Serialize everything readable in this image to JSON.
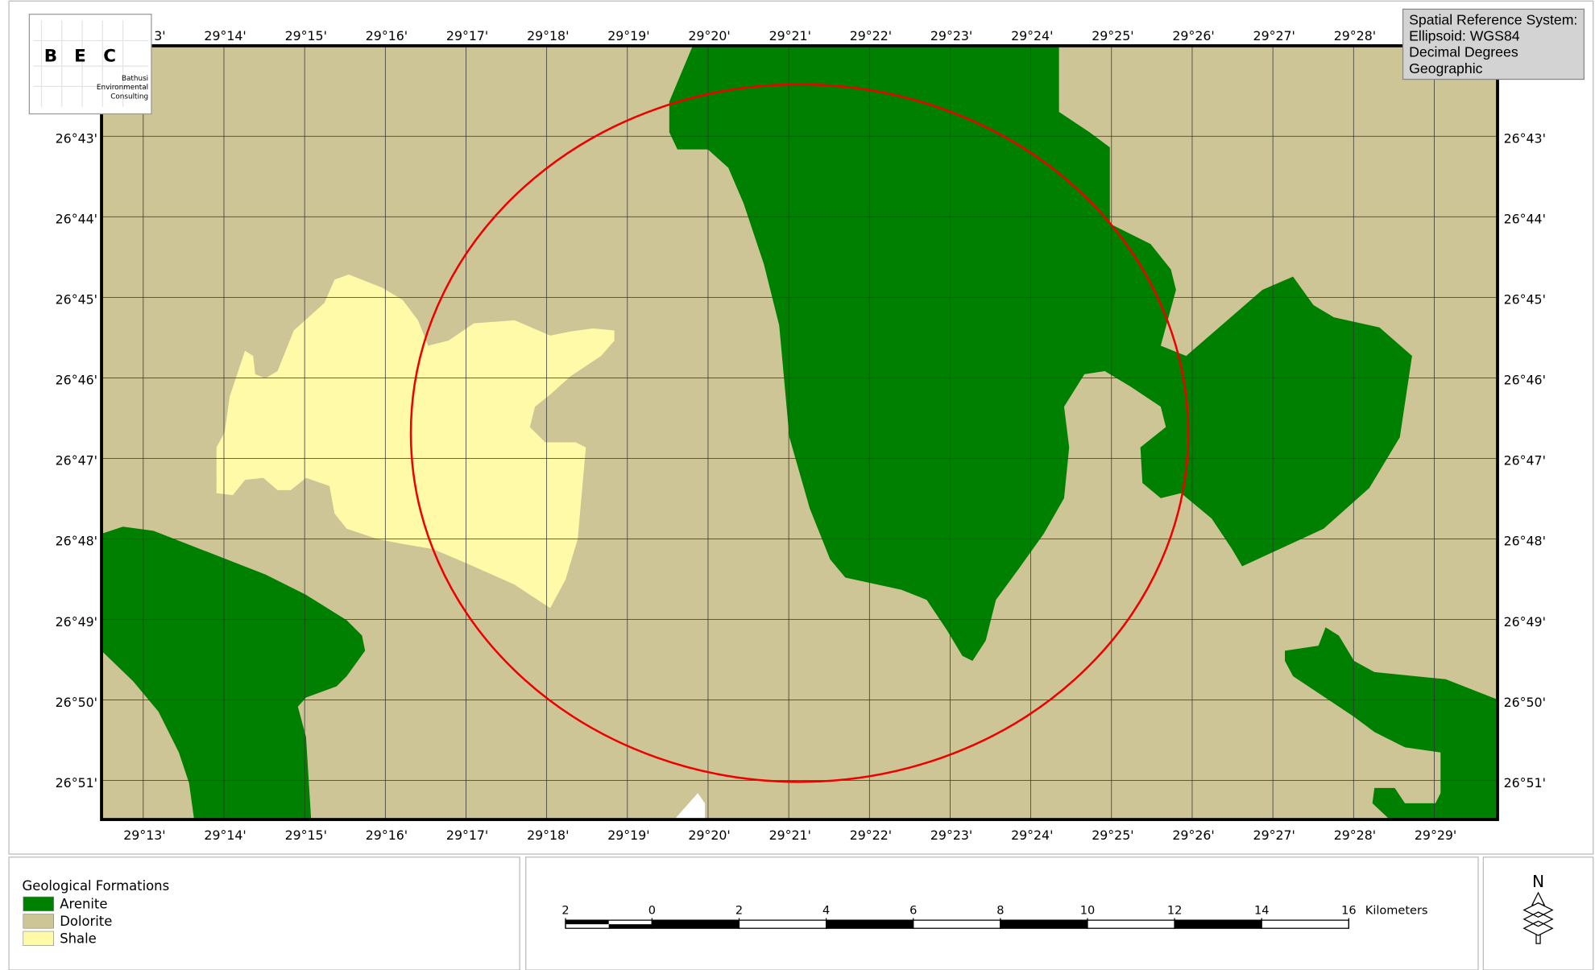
{
  "map": {
    "top_labels": [
      "3'",
      "29°14'",
      "29°15'",
      "29°16'",
      "29°17'",
      "29°18'",
      "29°19'",
      "29°20'",
      "29°21'",
      "29°22'",
      "29°23'",
      "29°24'",
      "29°25'",
      "29°26'",
      "29°27'",
      "29°28'"
    ],
    "bottom_labels": [
      "29°13'",
      "29°14'",
      "29°15'",
      "29°16'",
      "29°17'",
      "29°18'",
      "29°19'",
      "29°20'",
      "29°21'",
      "29°22'",
      "29°23'",
      "29°24'",
      "29°25'",
      "29°26'",
      "29°27'",
      "29°28'",
      "29°29'"
    ],
    "left_labels": [
      "26°43'",
      "26°44'",
      "26°45'",
      "26°46'",
      "26°47'",
      "26°48'",
      "26°49'",
      "26°50'",
      "26°51'"
    ],
    "right_labels": [
      "26°43'",
      "26°44'",
      "26°45'",
      "26°46'",
      "26°47'",
      "26°48'",
      "26°49'",
      "26°50'",
      "26°51'"
    ],
    "spatial_reference": [
      "Spatial Reference System:",
      "Ellipsoid: WGS84",
      "Decimal Degrees",
      "Geographic"
    ],
    "logo": {
      "letters": [
        "B",
        "E",
        "C"
      ],
      "lines": [
        "Bathusi",
        "Environmental",
        "Consulting"
      ]
    }
  },
  "legend": {
    "title": "Geological Formations",
    "items": [
      {
        "label": "Arenite",
        "color": "#008000"
      },
      {
        "label": "Dolorite",
        "color": "#cec597"
      },
      {
        "label": "Shale",
        "color": "#fffaa8"
      }
    ]
  },
  "scale_bar": {
    "labels": [
      "2",
      "0",
      "2",
      "4",
      "6",
      "8",
      "10",
      "12",
      "14",
      "16"
    ],
    "unit": "Kilometers"
  },
  "north_arrow": {
    "label": "N"
  }
}
